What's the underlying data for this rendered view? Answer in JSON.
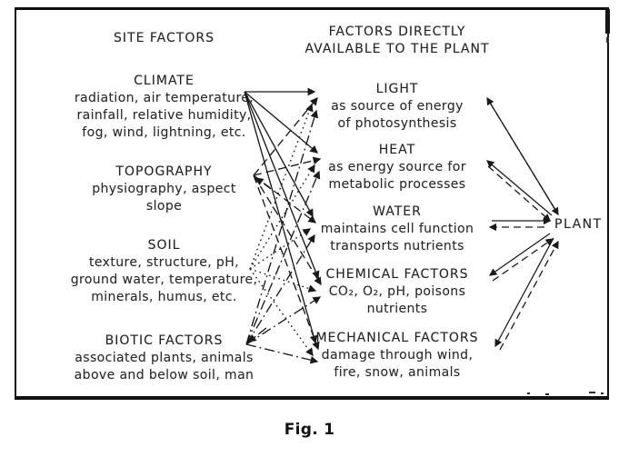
{
  "figure": {
    "caption": "Fig. 1",
    "colors": {
      "ink": "#1f1f1f",
      "paper": "#ffffff"
    },
    "left_column": {
      "heading": "SITE FACTORS",
      "items": [
        {
          "title": "CLIMATE",
          "lines": [
            "radiation, air temperature,",
            "rainfall, relative humidity,",
            "fog, wind, lightning, etc."
          ]
        },
        {
          "title": "TOPOGRAPHY",
          "lines": [
            "physiography, aspect",
            "slope"
          ]
        },
        {
          "title": "SOIL",
          "lines": [
            "texture, structure, pH,",
            "ground water, temperature,",
            "minerals, humus, etc."
          ]
        },
        {
          "title": "BIOTIC FACTORS",
          "lines": [
            "associated plants, animals",
            "above and below soil, man"
          ]
        }
      ]
    },
    "middle_column": {
      "heading_line1": "FACTORS DIRECTLY",
      "heading_line2": "AVAILABLE TO THE PLANT",
      "items": [
        {
          "title": "LIGHT",
          "lines": [
            "as source of energy",
            "of photosynthesis"
          ]
        },
        {
          "title": "HEAT",
          "lines": [
            "as energy source for",
            "metabolic processes"
          ]
        },
        {
          "title": "WATER",
          "lines": [
            "maintains cell function",
            "transports nutrients"
          ]
        },
        {
          "title": "CHEMICAL FACTORS",
          "lines": [
            "CO₂, O₂, pH, poisons",
            "nutrients"
          ]
        },
        {
          "title": "MECHANICAL FACTORS",
          "lines": [
            "damage through wind,",
            "fire, snow, animals"
          ]
        }
      ]
    },
    "plant_label": "PLANT",
    "arrow_key": {
      "climate_lines": "solid",
      "topography_lines": "dashed",
      "soil_lines": "dotted",
      "biotic_lines": "dash-dot",
      "plant_exchange": "paired solid/dashed arrows in both directions"
    }
  }
}
